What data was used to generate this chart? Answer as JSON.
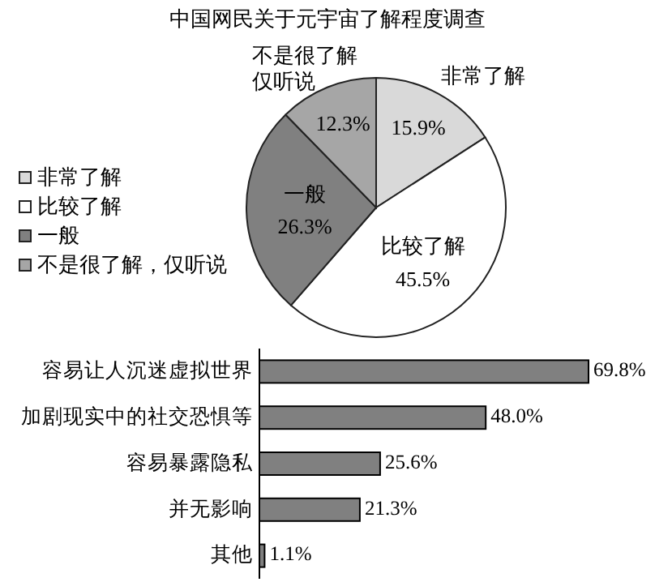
{
  "chart_data": [
    {
      "type": "pie",
      "title": "中国网民关于元宇宙了解程度调查",
      "categories": [
        "非常了解",
        "比较了解",
        "一般",
        "不是很了解，仅听说"
      ],
      "values": [
        15.9,
        45.5,
        26.3,
        12.3
      ],
      "colors": [
        "#d9d9d9",
        "#ffffff",
        "#808080",
        "#a6a6a6"
      ],
      "value_labels": [
        "15.9%",
        "45.5%",
        "26.3%",
        "12.3%"
      ],
      "legend": "left",
      "annotations": [
        {
          "text": "非常了解",
          "x": "非常了解"
        },
        {
          "text": "比较了解",
          "x": "比较了解"
        },
        {
          "text": "一般",
          "x": "一般"
        },
        {
          "text": "不是很了解",
          "x": "不是很了解，仅听说"
        },
        {
          "text": "仅听说",
          "x": "不是很了解，仅听说"
        }
      ]
    },
    {
      "type": "bar",
      "orientation": "horizontal",
      "categories": [
        "容易让人沉迷虚拟世界",
        "加剧现实中的社交恐惧等",
        "容易暴露隐私",
        "并无影响",
        "其他"
      ],
      "values": [
        69.8,
        48.0,
        25.6,
        21.3,
        1.1
      ],
      "color": "#808080",
      "value_labels": [
        "69.8%",
        "48.0%",
        "25.6%",
        "21.3%",
        "1.1%"
      ]
    }
  ]
}
